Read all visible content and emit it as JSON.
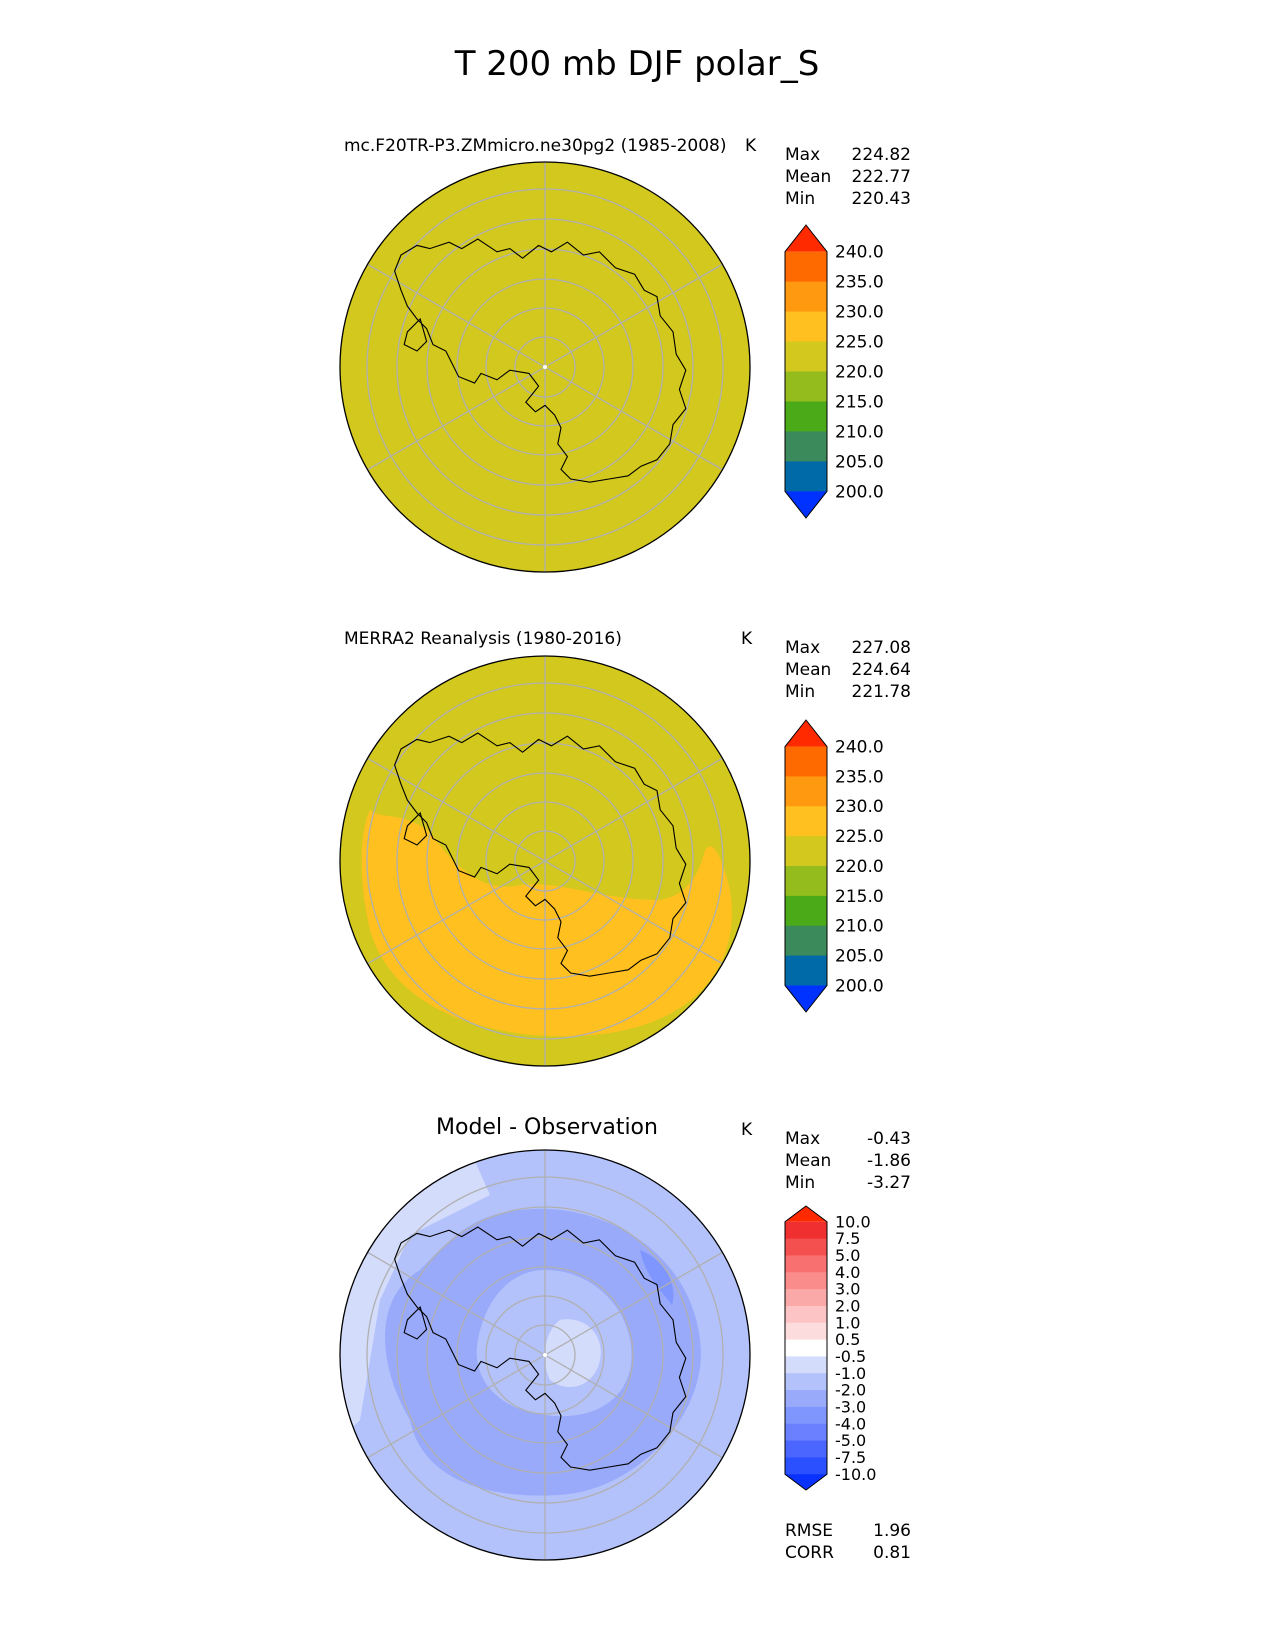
{
  "figure_title": "T 200 mb DJF polar_S",
  "colors": {
    "grid": "#b0b0b0",
    "coast": "#000000",
    "abs_scale": [
      "#0032ff",
      "#006aa8",
      "#3a8a5c",
      "#4aaa18",
      "#94bc1c",
      "#d2c81e",
      "#ffc020",
      "#ff9a10",
      "#ff6a00",
      "#ff2a00"
    ],
    "diff_scale": [
      "#0a32ff",
      "#2a50ff",
      "#4a66ff",
      "#6a80ff",
      "#8096ff",
      "#9aaafa",
      "#b4c2fb",
      "#d4dcfc",
      "#ffffff",
      "#fcdcdc",
      "#fcc4c4",
      "#fba8a8",
      "#fa8c8c",
      "#f87070",
      "#f45050",
      "#f03030",
      "#ff2a00"
    ]
  },
  "chart_data": [
    {
      "type": "heatmap",
      "projection": "south-polar-stereographic",
      "title": "mc.F20TR-P3.ZMmicro.ne30pg2 (1985-2008)",
      "units": "K",
      "stats": [
        {
          "label": "Max",
          "value": "224.82"
        },
        {
          "label": "Mean",
          "value": "222.77"
        },
        {
          "label": "Min",
          "value": "220.43"
        }
      ],
      "colorbar_ticks": [
        "240.0",
        "235.0",
        "230.0",
        "225.0",
        "220.0",
        "215.0",
        "210.0",
        "205.0",
        "200.0"
      ],
      "levels": [
        200,
        205,
        210,
        215,
        220,
        225,
        230,
        235,
        240
      ],
      "field_description": "uniform 220-225 K everywhere"
    },
    {
      "type": "heatmap",
      "projection": "south-polar-stereographic",
      "title": "MERRA2 Reanalysis (1980-2016)",
      "units": "K",
      "stats": [
        {
          "label": "Max",
          "value": "227.08"
        },
        {
          "label": "Mean",
          "value": "224.64"
        },
        {
          "label": "Min",
          "value": "221.78"
        }
      ],
      "colorbar_ticks": [
        "240.0",
        "235.0",
        "230.0",
        "225.0",
        "220.0",
        "215.0",
        "210.0",
        "205.0",
        "200.0"
      ],
      "levels": [
        200,
        205,
        210,
        215,
        220,
        225,
        230,
        235,
        240
      ],
      "field_description": "220-225 K with a 225-230 K crescent over the southern half"
    },
    {
      "type": "heatmap",
      "projection": "south-polar-stereographic",
      "title": "Model - Observation",
      "units": "K",
      "stats": [
        {
          "label": "Max",
          "value": "-0.43"
        },
        {
          "label": "Mean",
          "value": "-1.86"
        },
        {
          "label": "Min",
          "value": "-3.27"
        }
      ],
      "colorbar_ticks": [
        "10.0",
        "7.5",
        "5.0",
        "4.0",
        "3.0",
        "2.0",
        "1.0",
        "0.5",
        "-0.5",
        "-1.0",
        "-2.0",
        "-3.0",
        "-4.0",
        "-5.0",
        "-7.5",
        "-10.0"
      ],
      "levels": [
        -10,
        -7.5,
        -5,
        -4,
        -3,
        -2,
        -1,
        -0.5,
        0.5,
        1,
        2,
        3,
        4,
        5,
        7.5,
        10
      ],
      "metrics": [
        {
          "label": "RMSE",
          "value": "1.96"
        },
        {
          "label": "CORR",
          "value": "0.81"
        }
      ],
      "field_description": "negative differences, -2 to -3 K ring around Antarctica, -0.5 to -1 K near pole"
    }
  ]
}
